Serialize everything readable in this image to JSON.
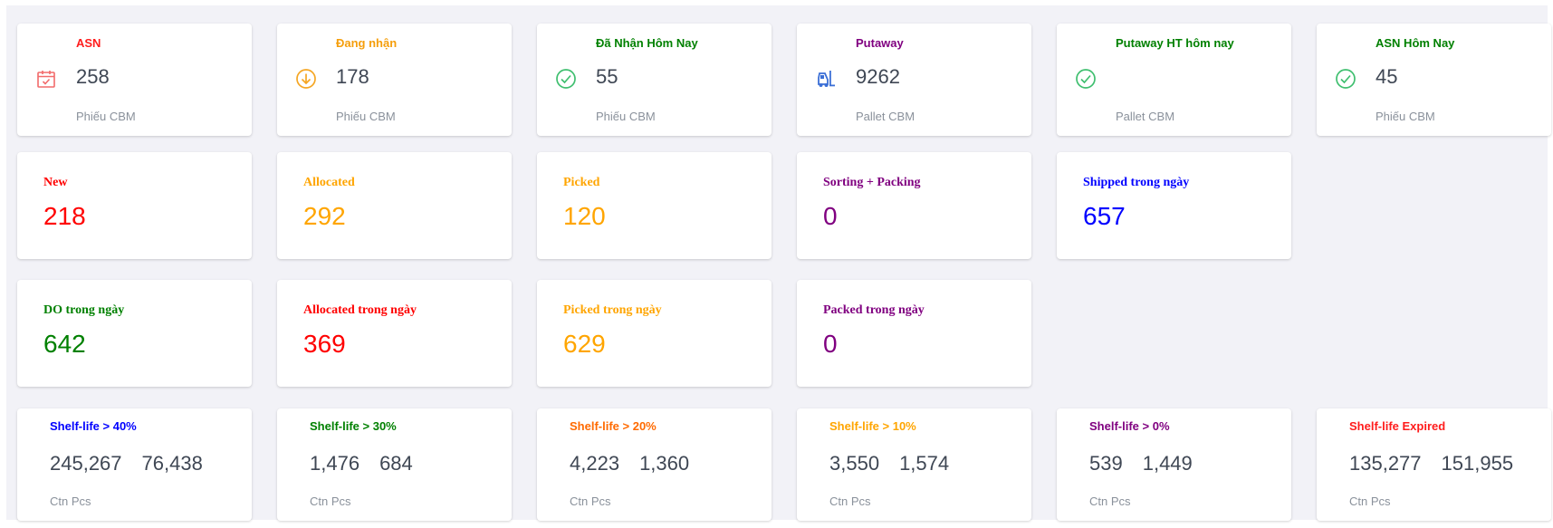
{
  "inbound": [
    {
      "title": "ASN",
      "value": "258",
      "sub": "Phiếu CBM",
      "color": "#ff1c1c",
      "icon": "calendar-check-icon"
    },
    {
      "title": "Đang nhận",
      "value": "178",
      "sub": "Phiếu CBM",
      "color": "#f59e0b",
      "icon": "arrow-down-circle-icon"
    },
    {
      "title": "Đã Nhận Hôm Nay",
      "value": "55",
      "sub": "Phiếu CBM",
      "color": "#008000",
      "icon": "check-circle-icon"
    },
    {
      "title": "Putaway",
      "value": "9262",
      "sub": "Pallet CBM",
      "color": "#800080",
      "icon": "forklift-icon"
    },
    {
      "title": "Putaway HT hôm nay",
      "value": "",
      "sub": "Pallet CBM",
      "color": "#008000",
      "icon": "check-circle-icon"
    },
    {
      "title": "ASN Hôm Nay",
      "value": "45",
      "sub": "Phiếu CBM",
      "color": "#008000",
      "icon": "check-circle-icon"
    }
  ],
  "outbound": [
    {
      "title": "New",
      "value": "218",
      "color": "#ff0000"
    },
    {
      "title": "Allocated",
      "value": "292",
      "color": "#ffa500"
    },
    {
      "title": "Picked",
      "value": "120",
      "color": "#ffa500"
    },
    {
      "title": "Sorting + Packing",
      "value": "0",
      "color": "#800080"
    },
    {
      "title": "Shipped trong ngày",
      "value": "657",
      "color": "#0000ff"
    }
  ],
  "daily": [
    {
      "title": "DO trong ngày",
      "value": "642",
      "color": "#008000"
    },
    {
      "title": "Allocated trong ngày",
      "value": "369",
      "color": "#ff0000"
    },
    {
      "title": "Picked trong ngày",
      "value": "629",
      "color": "#ffa500"
    },
    {
      "title": "Packed trong ngày",
      "value": "0",
      "color": "#800080"
    }
  ],
  "shelf_life": [
    {
      "title": "Shelf-life > 40%",
      "ctn": "245,267",
      "pcs": "76,438",
      "sub": "Ctn Pcs",
      "color": "#0000ff"
    },
    {
      "title": "Shelf-life > 30%",
      "ctn": "1,476",
      "pcs": "684",
      "sub": "Ctn Pcs",
      "color": "#008000"
    },
    {
      "title": "Shelf-life > 20%",
      "ctn": "4,223",
      "pcs": "1,360",
      "sub": "Ctn Pcs",
      "color": "#ff6a00"
    },
    {
      "title": "Shelf-life > 10%",
      "ctn": "3,550",
      "pcs": "1,574",
      "sub": "Ctn Pcs",
      "color": "#ffa500"
    },
    {
      "title": "Shelf-life > 0%",
      "ctn": "539",
      "pcs": "1,449",
      "sub": "Ctn Pcs",
      "color": "#800080"
    },
    {
      "title": "Shelf-life Expired",
      "ctn": "135,277",
      "pcs": "151,955",
      "sub": "Ctn Pcs",
      "color": "#ff1c1c"
    }
  ],
  "colors": {
    "icon_red": "#f26b6b",
    "icon_orange": "#f5a623",
    "icon_green": "#3fbf6f",
    "icon_blue": "#3b6fd6"
  }
}
